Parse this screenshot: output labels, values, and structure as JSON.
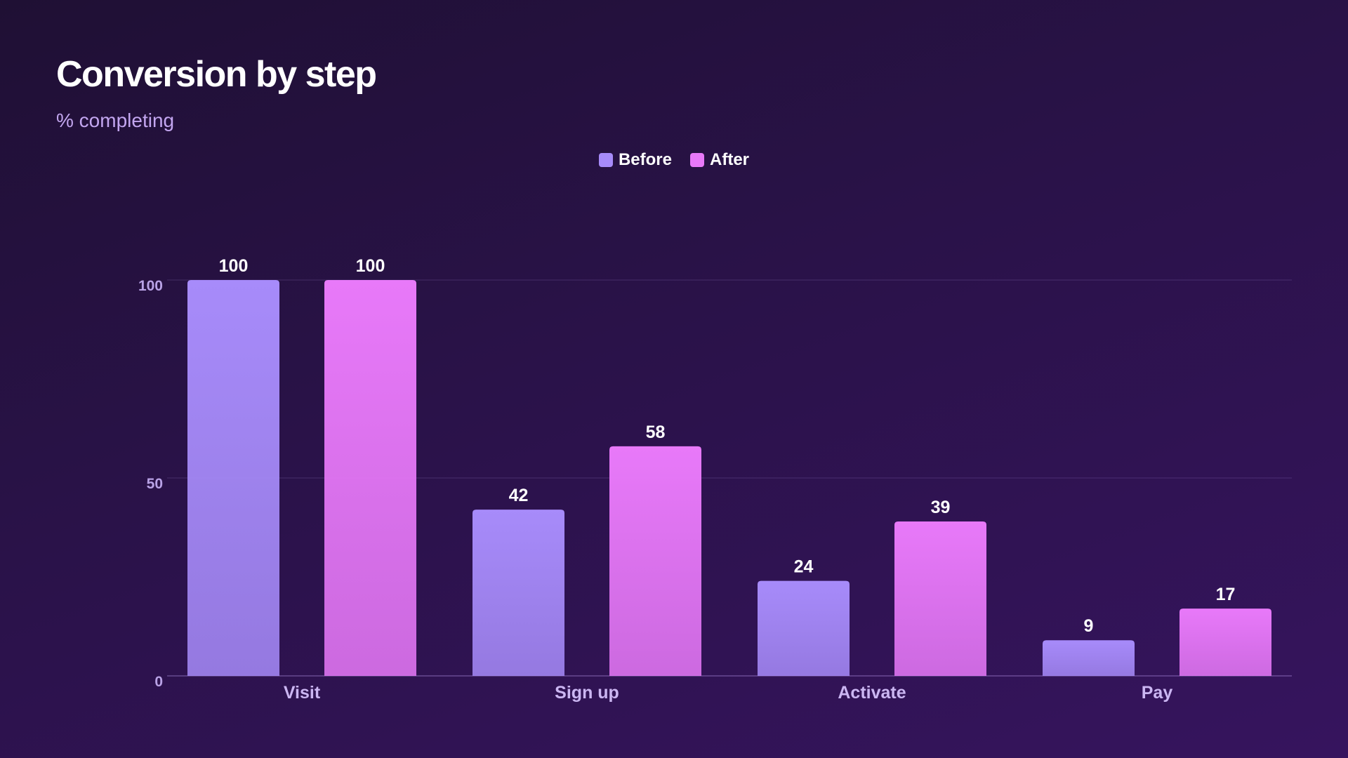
{
  "chart_data": {
    "type": "bar",
    "title": "Conversion by step",
    "subtitle": "% completing",
    "categories": [
      "Visit",
      "Sign up",
      "Activate",
      "Pay"
    ],
    "series": [
      {
        "name": "Before",
        "values": [
          100,
          42,
          24,
          9
        ],
        "color": "#a78bfa"
      },
      {
        "name": "After",
        "values": [
          100,
          58,
          39,
          17
        ],
        "color": "#e879f9"
      }
    ],
    "ylim": [
      0,
      100
    ],
    "yticks": [
      0,
      50,
      100
    ],
    "grid": true,
    "legend_position": "top-center",
    "data_labels": true
  }
}
